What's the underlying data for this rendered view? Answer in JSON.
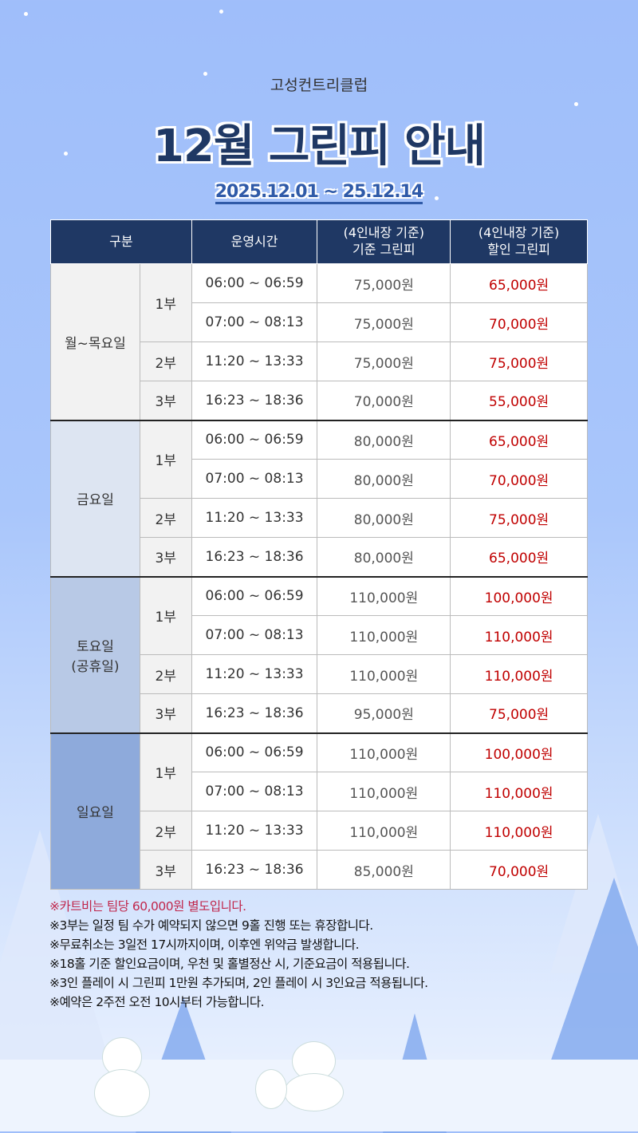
{
  "header": {
    "club": "고성컨트리클럽",
    "title": "12월 그린피 안내",
    "period": "2025.12.01 ~ 25.12.14"
  },
  "table": {
    "headers": [
      "구분",
      "운영시간",
      "(4인내장 기준)\n기준 그린피",
      "(4인내장 기준)\n할인 그린피"
    ],
    "header_lines": {
      "base": [
        "(4인내장 기준)",
        "기준 그린피"
      ],
      "disc": [
        "(4인내장 기준)",
        "할인 그린피"
      ]
    },
    "groups": [
      {
        "label": "월~목요일",
        "color": "#f2f2f2",
        "rows": [
          {
            "part": "1부",
            "time": "06:00 ~ 06:59",
            "base": "75,000원",
            "disc": "65,000원"
          },
          {
            "part": "1부",
            "time": "07:00 ~ 08:13",
            "base": "75,000원",
            "disc": "70,000원"
          },
          {
            "part": "2부",
            "time": "11:20 ~ 13:33",
            "base": "75,000원",
            "disc": "75,000원"
          },
          {
            "part": "3부",
            "time": "16:23 ~ 18:36",
            "base": "70,000원",
            "disc": "55,000원"
          }
        ]
      },
      {
        "label": "금요일",
        "color": "#dde5f2",
        "rows": [
          {
            "part": "1부",
            "time": "06:00 ~ 06:59",
            "base": "80,000원",
            "disc": "65,000원"
          },
          {
            "part": "1부",
            "time": "07:00 ~ 08:13",
            "base": "80,000원",
            "disc": "70,000원"
          },
          {
            "part": "2부",
            "time": "11:20 ~ 13:33",
            "base": "80,000원",
            "disc": "75,000원"
          },
          {
            "part": "3부",
            "time": "16:23 ~ 18:36",
            "base": "80,000원",
            "disc": "65,000원"
          }
        ]
      },
      {
        "label": "토요일\n(공휴일)",
        "label_lines": [
          "토요일",
          "(공휴일)"
        ],
        "color": "#b8c9e6",
        "rows": [
          {
            "part": "1부",
            "time": "06:00 ~ 06:59",
            "base": "110,000원",
            "disc": "100,000원"
          },
          {
            "part": "1부",
            "time": "07:00 ~ 08:13",
            "base": "110,000원",
            "disc": "110,000원"
          },
          {
            "part": "2부",
            "time": "11:20 ~ 13:33",
            "base": "110,000원",
            "disc": "110,000원"
          },
          {
            "part": "3부",
            "time": "16:23 ~ 18:36",
            "base": "95,000원",
            "disc": "75,000원"
          }
        ]
      },
      {
        "label": "일요일",
        "color": "#8eaadb",
        "rows": [
          {
            "part": "1부",
            "time": "06:00 ~ 06:59",
            "base": "110,000원",
            "disc": "100,000원"
          },
          {
            "part": "1부",
            "time": "07:00 ~ 08:13",
            "base": "110,000원",
            "disc": "110,000원"
          },
          {
            "part": "2부",
            "time": "11:20 ~ 13:33",
            "base": "110,000원",
            "disc": "110,000원"
          },
          {
            "part": "3부",
            "time": "16:23 ~ 18:36",
            "base": "85,000원",
            "disc": "70,000원"
          }
        ]
      }
    ]
  },
  "notes": [
    "※카트비는 팀당 60,000원 별도입니다.",
    "※3부는 일정 팀 수가 예약되지 않으면 9홀 진행 또는 휴장합니다.",
    "※무료취소는 3일전 17시까지이며, 이후엔 위약금 발생합니다.",
    "※18홀 기준 할인요금이며, 우천 및 홀별정산 시, 기준요금이 적용됩니다.",
    "※3인 플레이 시 그린피 1만원 추가되며, 2인 플레이 시 3인요금 적용됩니다.",
    "※예약은 2주전 오전 10시부터 가능합니다."
  ],
  "colors": {
    "header": "#1f3864",
    "discount": "#c00000",
    "note_highlight": "#c0264b"
  }
}
